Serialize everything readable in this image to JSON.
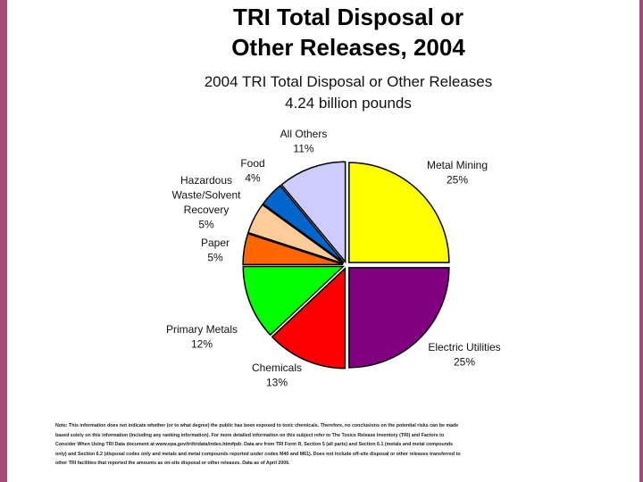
{
  "slide": {
    "title_line1": "TRI Total Disposal or",
    "title_line2": "Other Releases, 2004"
  },
  "chart_data": {
    "type": "pie",
    "title": "2004 TRI Total Disposal or Other Releases",
    "subtitle": "4.24 billion pounds",
    "slices": [
      {
        "label": "Metal Mining",
        "value": 25,
        "value_label": "25%",
        "color": "#ffff00"
      },
      {
        "label": "Electric Utilities",
        "value": 25,
        "value_label": "25%",
        "color": "#800080"
      },
      {
        "label": "Chemicals",
        "value": 13,
        "value_label": "13%",
        "color": "#ff0000"
      },
      {
        "label": "Primary Metals",
        "value": 12,
        "value_label": "12%",
        "color": "#00ff00"
      },
      {
        "label": "Paper",
        "value": 5,
        "value_label": "5%",
        "color": "#ff6600"
      },
      {
        "label": "Hazardous Waste/Solvent Recovery",
        "value": 5,
        "value_label": "5%",
        "color": "#ffcc99"
      },
      {
        "label": "Food",
        "value": 4,
        "value_label": "4%",
        "color": "#0066cc"
      },
      {
        "label": "All Others",
        "value": 11,
        "value_label": "11%",
        "color": "#ccccff"
      }
    ]
  },
  "note_lines": [
    "Note: This information does not indicate whether (or to what degree) the public has been exposed to toxic chemicals. Therefore, no conclusions on the potential risks can be made",
    "based solely on this information (including any ranking information). For more detailed information on this subject refer to The Toxics Release Inventory (TRI) and Factors to",
    "Consider When Using TRI Data document at www.epa.gov/tri/tridata/index.htm#pdr. Data are from TRI Form R, Section 5 (all parts) and Section 6.1 (metals and metal compounds",
    "only) and Section 6.2 (disposal codes only and metals and metal compounds reported under codes M40 and M61). Does not include off-site disposal or other releases transferred to",
    "other TRI facilities that reported the amounts as on-site disposal or other releases. Data as of April 2006."
  ]
}
